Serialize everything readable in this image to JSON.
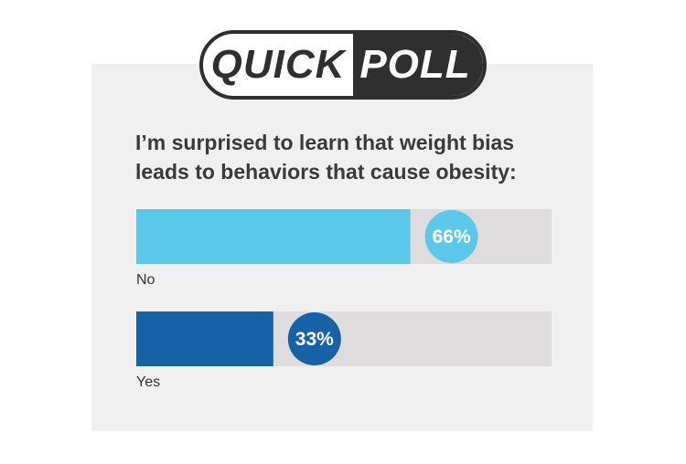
{
  "header": {
    "left": "QUICK",
    "right": "POLL"
  },
  "question": "I’m surprised to learn that weight bias leads to behaviors that cause obesity:",
  "chart_data": {
    "type": "bar",
    "orientation": "horizontal",
    "categories": [
      "No",
      "Yes"
    ],
    "values": [
      66,
      33
    ],
    "value_labels": [
      "66%",
      "33%"
    ],
    "xlim": [
      0,
      100
    ],
    "colors": [
      "#5bc8ea",
      "#1563a6"
    ],
    "track_color": "#dedcdc"
  }
}
